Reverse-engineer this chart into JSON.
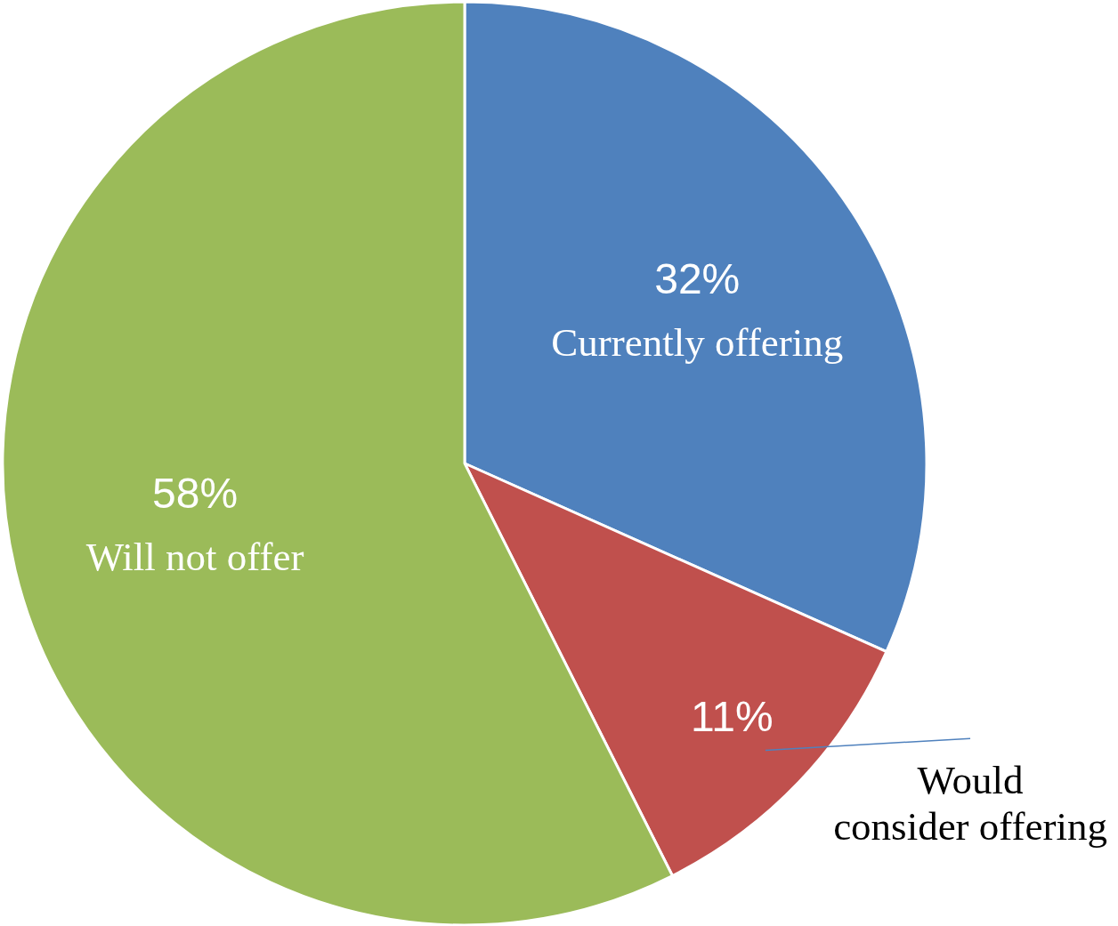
{
  "chart_data": {
    "type": "pie",
    "categories": [
      "Currently offering",
      "Would consider offering",
      "Will not offer"
    ],
    "values": [
      32,
      11,
      58
    ],
    "value_labels": [
      "32%",
      "11%",
      "58%"
    ],
    "colors": [
      "#4f81bd",
      "#c0504d",
      "#9bbb59"
    ]
  }
}
